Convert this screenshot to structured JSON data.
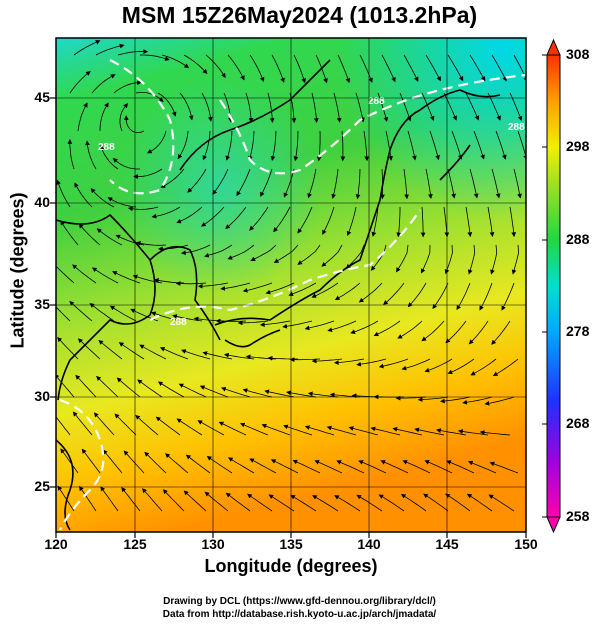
{
  "title": "MSM 15Z26May2024 (1013.2hPa)",
  "xlabel": "Longitude (degrees)",
  "ylabel": "Latitude  (degrees)",
  "credit_line1": "Drawing by DCL (https://www.gfd-dennou.org/library/dcl/)",
  "credit_line2": "Data from http://database.rish.kyoto-u.ac.jp/arch/jmadata/",
  "lon_ticks": [
    "120",
    "125",
    "130",
    "135",
    "140",
    "145",
    "150"
  ],
  "lat_ticks": [
    "45",
    "40",
    "35",
    "30",
    "25"
  ],
  "colorbar_ticks": [
    "308",
    "298",
    "288",
    "278",
    "268",
    "258"
  ],
  "contour_labels": [
    "288",
    "288",
    "288",
    "288"
  ],
  "colors": {
    "warm": "#ff8c00",
    "mid": "#e8e800",
    "green": "#22cc22",
    "cyan": "#00d8d8",
    "blue": "#2244ff",
    "magenta": "#ff00cc"
  }
}
